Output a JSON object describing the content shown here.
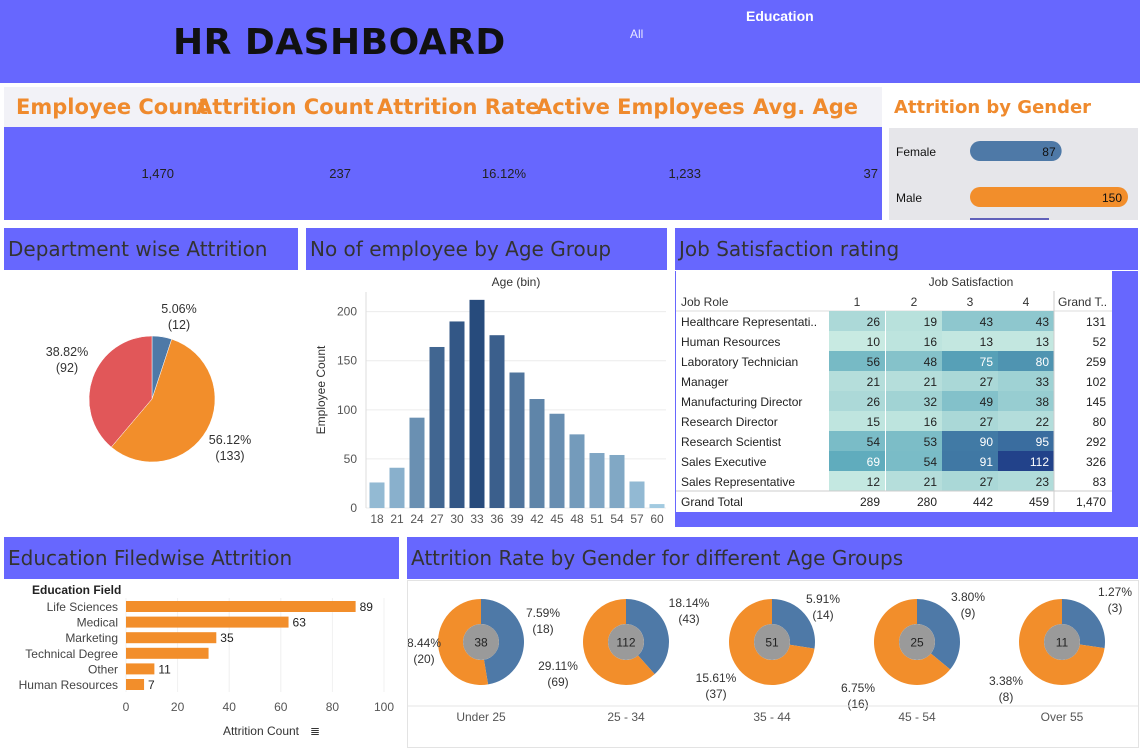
{
  "header": {
    "title": "HR DASHBOARD",
    "filter_label": "Education",
    "filter_value": "All"
  },
  "kpis": [
    {
      "label": "Employee Count",
      "value": "1,470"
    },
    {
      "label": "Attrition Count",
      "value": "237"
    },
    {
      "label": "Attrition Rate",
      "value": "16.12%"
    },
    {
      "label": "Active Employees",
      "value": "1,233"
    },
    {
      "label": "Avg. Age",
      "value": "37"
    }
  ],
  "sections": {
    "gender": "Attrition by Gender",
    "department": "Department wise Attrition",
    "age_group": "No of employee by Age Group",
    "job_satisfaction": "Job Satisfaction rating",
    "education": "Education Filedwise Attrition",
    "gender_age": "Attrition Rate by Gender for different Age Groups"
  },
  "colors": {
    "header_bg": "#6767fe",
    "kpi_text": "#ef8a2d",
    "orange": "#f28e2b",
    "steel_blue": "#4e79a7",
    "red": "#e15759",
    "grey_center": "#9a9a9a"
  },
  "chart_data": [
    {
      "id": "gender_bars",
      "type": "bar",
      "orientation": "horizontal",
      "categories": [
        "Female",
        "Male"
      ],
      "values": [
        87,
        150
      ],
      "colors": [
        "#4e79a7",
        "#f28e2b"
      ]
    },
    {
      "id": "department_pie",
      "type": "pie",
      "slices": [
        {
          "value": 12,
          "percent": "5.06%",
          "count_label": "(12)",
          "color": "#4e79a7"
        },
        {
          "value": 133,
          "percent": "56.12%",
          "count_label": "(133)",
          "color": "#f28e2b"
        },
        {
          "value": 92,
          "percent": "38.82%",
          "count_label": "(92)",
          "color": "#e15759"
        }
      ]
    },
    {
      "id": "age_histogram",
      "type": "bar",
      "title": "Age (bin)",
      "ylabel": "Employee Count",
      "ylim": [
        0,
        220
      ],
      "yticks": [
        0,
        50,
        100,
        150,
        200
      ],
      "categories": [
        "18",
        "21",
        "24",
        "27",
        "30",
        "33",
        "36",
        "39",
        "42",
        "45",
        "48",
        "51",
        "54",
        "57",
        "60"
      ],
      "values": [
        26,
        41,
        92,
        164,
        190,
        212,
        176,
        138,
        111,
        96,
        75,
        56,
        54,
        27,
        4
      ]
    },
    {
      "id": "job_satisfaction",
      "type": "table",
      "title": "Job Satisfaction",
      "row_header": "Job Role",
      "columns": [
        "1",
        "2",
        "3",
        "4"
      ],
      "total_label": "Grand T..",
      "rows": [
        {
          "role": "Healthcare Representati..",
          "values": [
            26,
            19,
            43,
            43
          ],
          "total": 131
        },
        {
          "role": "Human Resources",
          "values": [
            10,
            16,
            13,
            13
          ],
          "total": 52
        },
        {
          "role": "Laboratory Technician",
          "values": [
            56,
            48,
            75,
            80
          ],
          "total": 259
        },
        {
          "role": "Manager",
          "values": [
            21,
            21,
            27,
            33
          ],
          "total": 102
        },
        {
          "role": "Manufacturing Director",
          "values": [
            26,
            32,
            49,
            38
          ],
          "total": 145
        },
        {
          "role": "Research Director",
          "values": [
            15,
            16,
            27,
            22
          ],
          "total": 80
        },
        {
          "role": "Research Scientist",
          "values": [
            54,
            53,
            90,
            95
          ],
          "total": 292
        },
        {
          "role": "Sales Executive",
          "values": [
            69,
            54,
            91,
            112
          ],
          "total": 326
        },
        {
          "role": "Sales Representative",
          "values": [
            12,
            21,
            27,
            23
          ],
          "total": 83
        }
      ],
      "grand_total": {
        "label": "Grand Total",
        "values": [
          289,
          280,
          442,
          459
        ],
        "total": "1,470"
      }
    },
    {
      "id": "education_bars",
      "type": "bar",
      "orientation": "horizontal",
      "axis_title": "Education Field",
      "xlabel": "Attrition Count",
      "xlim": [
        0,
        100
      ],
      "xticks": [
        0,
        20,
        40,
        60,
        80,
        100
      ],
      "categories": [
        "Life Sciences",
        "Medical",
        "Marketing",
        "Technical Degree",
        "Other",
        "Human Resources"
      ],
      "values": [
        89,
        63,
        35,
        32,
        11,
        7
      ],
      "value_labels": [
        "89",
        "63",
        "35",
        "",
        "11",
        "7"
      ]
    },
    {
      "id": "gender_age_donuts",
      "type": "pie",
      "groups": [
        {
          "name": "Under 25",
          "center": "38",
          "male": {
            "value": 18,
            "label": "7.59%",
            "count": "(18)"
          },
          "female": {
            "value": 20,
            "label": "8.44%",
            "count": "(20)"
          }
        },
        {
          "name": "25 - 34",
          "center": "112",
          "male": {
            "value": 43,
            "label": "18.14%",
            "count": "(43)"
          },
          "female": {
            "value": 69,
            "label": "29.11%",
            "count": "(69)"
          }
        },
        {
          "name": "35 - 44",
          "center": "51",
          "male": {
            "value": 14,
            "label": "5.91%",
            "count": "(14)"
          },
          "female": {
            "value": 37,
            "label": "15.61%",
            "count": "(37)"
          }
        },
        {
          "name": "45 - 54",
          "center": "25",
          "male": {
            "value": 9,
            "label": "3.80%",
            "count": "(9)"
          },
          "female": {
            "value": 16,
            "label": "6.75%",
            "count": "(16)"
          }
        },
        {
          "name": "Over 55",
          "center": "11",
          "male": {
            "value": 3,
            "label": "1.27%",
            "count": "(3)"
          },
          "female": {
            "value": 8,
            "label": "3.38%",
            "count": "(8)"
          }
        }
      ]
    }
  ]
}
